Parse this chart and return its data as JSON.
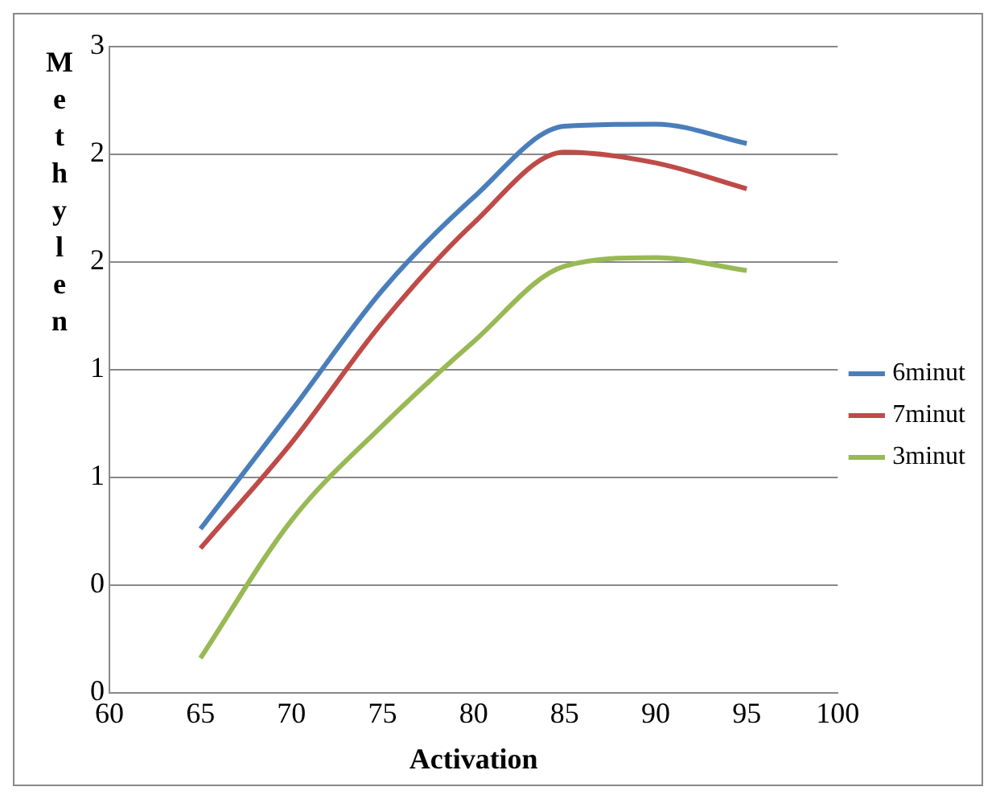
{
  "chart_data": {
    "type": "line",
    "xlabel": "Activation",
    "ylabel": "Methylen",
    "x": [
      65,
      70,
      75,
      80,
      85,
      90,
      95
    ],
    "series": [
      {
        "name": "6minut",
        "color": "#4a7ebb",
        "values": [
          0.76,
          1.31,
          1.87,
          2.3,
          2.63,
          2.64,
          2.55
        ]
      },
      {
        "name": "7minut",
        "color": "#be4b48",
        "values": [
          0.67,
          1.16,
          1.72,
          2.18,
          2.51,
          2.46,
          2.34
        ]
      },
      {
        "name": "3minut",
        "color": "#98b954",
        "values": [
          0.16,
          0.8,
          1.24,
          1.63,
          1.98,
          2.02,
          1.96
        ]
      }
    ],
    "xlim": [
      60,
      100
    ],
    "xticks": [
      60,
      65,
      70,
      75,
      80,
      85,
      90,
      95,
      100
    ],
    "ylim": [
      0,
      3
    ],
    "yticks": [
      {
        "value": 0,
        "label": "0"
      },
      {
        "value": 0.5,
        "label": "0"
      },
      {
        "value": 1,
        "label": "1"
      },
      {
        "value": 1.5,
        "label": "1"
      },
      {
        "value": 2,
        "label": "2"
      },
      {
        "value": 2.5,
        "label": "2"
      },
      {
        "value": 3,
        "label": "3"
      }
    ],
    "grid": "y",
    "legend": "right",
    "marker": "none",
    "line_style": "solid"
  }
}
